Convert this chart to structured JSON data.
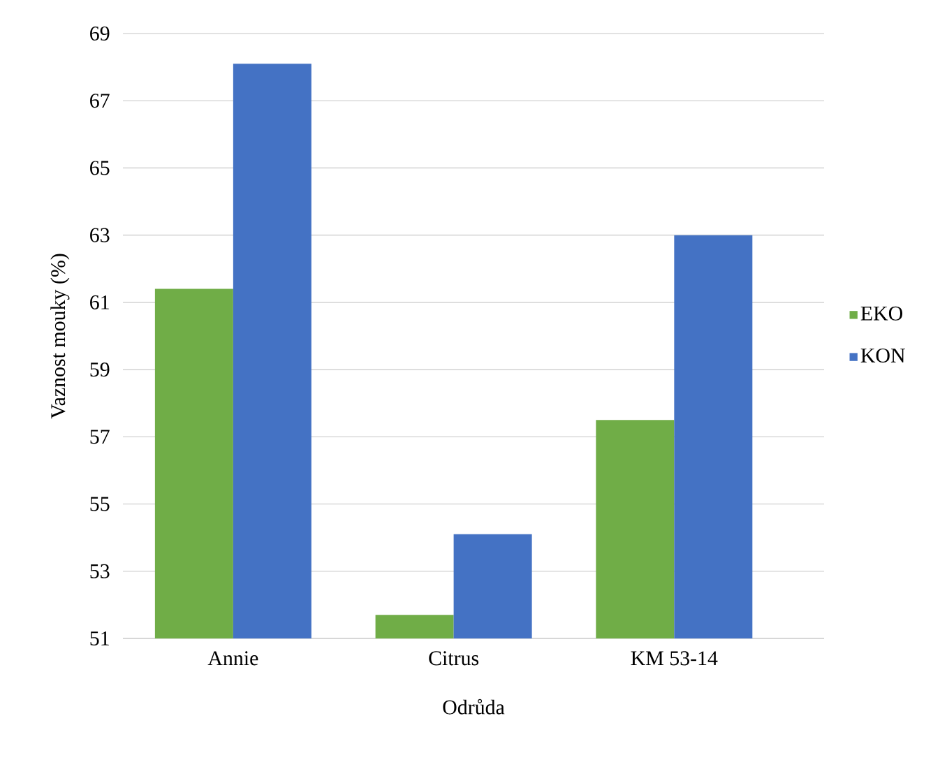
{
  "chart_data": {
    "type": "bar",
    "xlabel": "Odrůda",
    "ylabel": "Vaznost mouky (%)",
    "categories": [
      "Annie",
      "Citrus",
      "KM 53-14"
    ],
    "series": [
      {
        "name": "EKO",
        "color": "#70ad47",
        "values": [
          61.4,
          51.7,
          57.5
        ]
      },
      {
        "name": "KON",
        "color": "#4472c4",
        "values": [
          68.1,
          54.1,
          63.0
        ]
      }
    ],
    "ylim": [
      51,
      69
    ],
    "yticks": [
      51,
      53,
      55,
      57,
      59,
      61,
      63,
      65,
      67,
      69
    ],
    "grid": "y",
    "legend": "right"
  }
}
